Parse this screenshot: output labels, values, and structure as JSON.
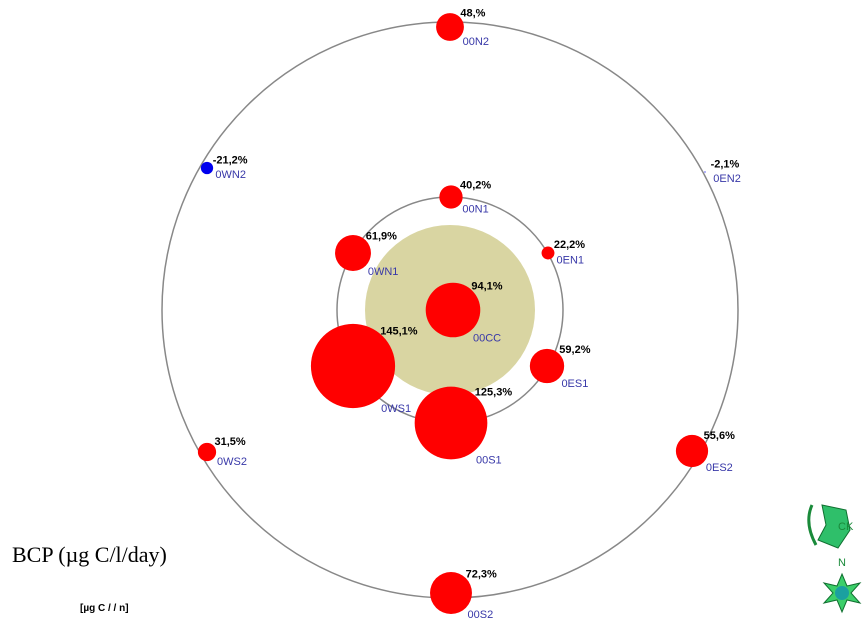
{
  "chart_data": {
    "type": "bubble",
    "title": "BCP (µg C/l/day)",
    "subtitle": "[µg C /  /   n]",
    "categories": [
      "00N2",
      "0WN2",
      "0EN2",
      "00N1",
      "0EN1",
      "0WN1",
      "00CC",
      "0WS1",
      "0ES1",
      "00S1",
      "0WS2",
      "0ES2",
      "00S2"
    ],
    "values": [
      48,
      -21.2,
      -2.1,
      40.2,
      22.2,
      61.9,
      94.1,
      145.1,
      59.2,
      125.3,
      31.5,
      55.6,
      72.3
    ],
    "value_labels": [
      "48,%",
      "-21,2%",
      "-2,1%",
      "40,2%",
      "22,2%",
      "61,9%",
      "94,1%",
      "145,1%",
      "59,2%",
      "125,3%",
      "31,5%",
      "55,6%",
      "72,3%"
    ],
    "colors": {
      "positive": "#ff0000",
      "negative": "#0000ee"
    }
  },
  "icons": {
    "rotate_label": "CK",
    "north_label": "N"
  }
}
